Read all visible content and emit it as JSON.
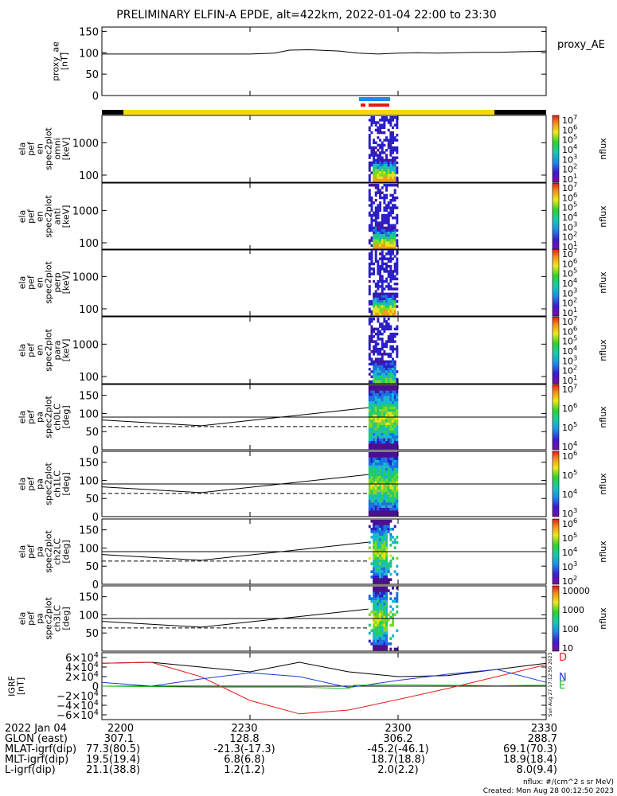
{
  "title": "PRELIMINARY ELFIN-A EPDE, alt=422km, 2022-01-04 22:00 to 23:30",
  "colors": {
    "yellow_bar": "#f7d800",
    "black_bar": "#000000",
    "blue_mark": "#1e8ce6",
    "red_mark": "#e21b1b",
    "grf_d": "#e21b1b",
    "grf_n": "#1a3cd0",
    "grf_e": "#1fbf1f",
    "grf_total": "#000000"
  },
  "panels": {
    "ae": {
      "ylabel": [
        "proxy_ae",
        "[nT]"
      ],
      "legend": "proxy_AE",
      "yticks": [
        "150",
        "100",
        "50",
        "0"
      ]
    },
    "spec": [
      {
        "ylabel": [
          "ela",
          "pef",
          "en",
          "spec2plot",
          "omni",
          "[keV]"
        ],
        "yticks": [
          "1000",
          "100"
        ],
        "cbar_ticks": [
          "10^7",
          "10^6",
          "10^5",
          "10^4",
          "10^3",
          "10^2",
          "10^1"
        ],
        "cbar_label": "nflux"
      },
      {
        "ylabel": [
          "ela",
          "pef",
          "en",
          "spec2plot",
          "anti",
          "[keV]"
        ],
        "yticks": [
          "1000",
          "100"
        ],
        "cbar_ticks": [
          "10^7",
          "10^6",
          "10^5",
          "10^4",
          "10^3",
          "10^2",
          "10^1"
        ],
        "cbar_label": "nflux"
      },
      {
        "ylabel": [
          "ela",
          "pef",
          "en",
          "spec2plot",
          "perp",
          "[keV]"
        ],
        "yticks": [
          "1000",
          "100"
        ],
        "cbar_ticks": [
          "10^7",
          "10^6",
          "10^5",
          "10^4",
          "10^3",
          "10^2",
          "10^1"
        ],
        "cbar_label": "nflux"
      },
      {
        "ylabel": [
          "ela",
          "pef",
          "en",
          "spec2plot",
          "para",
          "[keV]"
        ],
        "yticks": [
          "1000",
          "100"
        ],
        "cbar_ticks": [
          "10^7",
          "10^6",
          "10^5",
          "10^4",
          "10^3",
          "10^2",
          "10^1"
        ],
        "cbar_label": "nflux"
      }
    ],
    "pa": [
      {
        "ylabel": [
          "ela",
          "pef",
          "pa",
          "spec2plot",
          "ch0LC",
          "[deg]"
        ],
        "yticks": [
          "150",
          "100",
          "50",
          "0"
        ],
        "cbar_ticks": [
          "10^7",
          "10^6",
          "10^5",
          "10^4"
        ],
        "cbar_label": "nflux"
      },
      {
        "ylabel": [
          "ela",
          "pef",
          "pa",
          "spec2plot",
          "ch1LC",
          "[deg]"
        ],
        "yticks": [
          "150",
          "100",
          "50",
          "0"
        ],
        "cbar_ticks": [
          "10^6",
          "10^5",
          "10^4",
          "10^3"
        ],
        "cbar_label": "nflux"
      },
      {
        "ylabel": [
          "ela",
          "pef",
          "pa",
          "spec2plot",
          "ch2LC",
          "[deg]"
        ],
        "yticks": [
          "150",
          "100",
          "50",
          "0"
        ],
        "cbar_ticks": [
          "10^6",
          "10^5",
          "10^4",
          "10^3",
          "10^2"
        ],
        "cbar_label": "nflux"
      },
      {
        "ylabel": [
          "ela",
          "pef",
          "pa",
          "spec2plot",
          "ch3LC",
          "[deg]"
        ],
        "yticks": [
          "150",
          "100",
          "50"
        ],
        "cbar_ticks": [
          "10000",
          "1000",
          "100",
          "10"
        ],
        "cbar_label": "nflux"
      }
    ],
    "grf": {
      "ylabel": [
        "IGRF",
        "[nT]"
      ],
      "yticks": [
        "6×10^4",
        "4×10^4",
        "2×10^4",
        "0",
        "−2×10^4",
        "−4×10^4",
        "−6×10^4"
      ],
      "labels": [
        "D",
        "N",
        "E"
      ]
    }
  },
  "chart_data": [
    {
      "type": "line",
      "title": "proxy_AE",
      "xlabel": "",
      "ylabel": "proxy_ae [nT]",
      "ylim": [
        0,
        160
      ],
      "series": [
        {
          "name": "proxy_AE",
          "x_min": [
            0,
            10,
            20,
            30,
            35,
            38,
            42,
            48,
            52,
            56,
            60,
            64,
            68,
            72,
            76,
            80,
            84,
            88,
            90
          ],
          "values": [
            97,
            97,
            97,
            97,
            99,
            106,
            107,
            104,
            99,
            97,
            99,
            100,
            99,
            100,
            101,
            101,
            102,
            103,
            104
          ]
        }
      ]
    },
    {
      "type": "heatmap",
      "title": "ela pef en spec2plot omni",
      "ylabel": "[keV]",
      "ylim": [
        60,
        7000
      ],
      "yscale": "log",
      "x_active_min": [
        54,
        60
      ],
      "colorbar": "nflux",
      "zlim": [
        10,
        10000000
      ]
    },
    {
      "type": "heatmap",
      "title": "ela pef en spec2plot anti",
      "ylabel": "[keV]",
      "ylim": [
        60,
        7000
      ],
      "yscale": "log",
      "x_active_min": [
        54,
        60
      ],
      "colorbar": "nflux",
      "zlim": [
        10,
        10000000
      ]
    },
    {
      "type": "heatmap",
      "title": "ela pef en spec2plot perp",
      "ylabel": "[keV]",
      "ylim": [
        60,
        7000
      ],
      "yscale": "log",
      "x_active_min": [
        54,
        60
      ],
      "colorbar": "nflux",
      "zlim": [
        10,
        10000000
      ]
    },
    {
      "type": "heatmap",
      "title": "ela pef en spec2plot para",
      "ylabel": "[keV]",
      "ylim": [
        60,
        7000
      ],
      "yscale": "log",
      "x_active_min": [
        54,
        60
      ],
      "colorbar": "nflux",
      "zlim": [
        10,
        10000000
      ]
    },
    {
      "type": "heatmap",
      "title": "ela pef pa spec2plot ch0LC",
      "ylabel": "[deg]",
      "ylim": [
        0,
        180
      ],
      "hline": 90,
      "lc_solid": {
        "x_min": [
          0,
          20,
          54
        ],
        "values": [
          82,
          66,
          116
        ]
      },
      "lc_dashed": {
        "x_min": [
          0,
          20,
          54
        ],
        "values": [
          64,
          64,
          64
        ]
      }
    },
    {
      "type": "heatmap",
      "title": "ela pef pa spec2plot ch1LC",
      "ylabel": "[deg]",
      "ylim": [
        0,
        180
      ],
      "hline": 90,
      "lc_solid": {
        "x_min": [
          0,
          20,
          54
        ],
        "values": [
          82,
          66,
          116
        ]
      },
      "lc_dashed": {
        "x_min": [
          0,
          20,
          54
        ],
        "values": [
          64,
          64,
          64
        ]
      }
    },
    {
      "type": "heatmap",
      "title": "ela pef pa spec2plot ch2LC",
      "ylabel": "[deg]",
      "ylim": [
        0,
        180
      ],
      "hline": 90,
      "lc_solid": {
        "x_min": [
          0,
          20,
          54
        ],
        "values": [
          82,
          66,
          116
        ]
      },
      "lc_dashed": {
        "x_min": [
          0,
          20,
          54
        ],
        "values": [
          64,
          64,
          64
        ]
      }
    },
    {
      "type": "heatmap",
      "title": "ela pef pa spec2plot ch3LC",
      "ylabel": "[deg]",
      "ylim": [
        0,
        180
      ],
      "hline": 90,
      "lc_solid": {
        "x_min": [
          0,
          20,
          54
        ],
        "values": [
          82,
          66,
          116
        ]
      },
      "lc_dashed": {
        "x_min": [
          0,
          20,
          54
        ],
        "values": [
          64,
          64,
          64
        ]
      }
    },
    {
      "type": "line",
      "title": "IGRF",
      "ylabel": "IGRF [nT]",
      "ylim": [
        -70000,
        70000
      ],
      "series": [
        {
          "name": "total",
          "x_min": [
            0,
            10,
            20,
            30,
            40,
            50,
            60,
            70,
            80,
            90
          ],
          "values": [
            48000,
            50000,
            40000,
            30000,
            50000,
            30000,
            20000,
            22000,
            35000,
            48000
          ]
        },
        {
          "name": "D",
          "x_min": [
            0,
            10,
            20,
            30,
            40,
            50,
            60,
            70,
            80,
            90
          ],
          "values": [
            48000,
            50000,
            20000,
            -30000,
            -58000,
            -50000,
            -28000,
            -5000,
            20000,
            45000
          ]
        },
        {
          "name": "N",
          "x_min": [
            0,
            10,
            20,
            30,
            40,
            50,
            60,
            70,
            80,
            90
          ],
          "values": [
            8000,
            0,
            15000,
            28000,
            20000,
            -3000,
            12000,
            25000,
            35000,
            8000
          ]
        },
        {
          "name": "E",
          "x_min": [
            0,
            10,
            20,
            30,
            40,
            50,
            51,
            60,
            70,
            80,
            90
          ],
          "values": [
            0,
            -1000,
            -2000,
            -2000,
            -2000,
            -5000,
            2000,
            3000,
            2000,
            1000,
            2000
          ]
        }
      ]
    }
  ],
  "x_ticks": [
    "2200",
    "2230",
    "2300",
    "2330"
  ],
  "footer": {
    "rows": [
      {
        "label": "2022 Jan 04",
        "v1": "2200",
        "v2": "2230",
        "v3": "2300",
        "v4": "2330"
      },
      {
        "label": "GLON (east)",
        "v1": "307.1",
        "v2": "128.8",
        "v3": "306.2",
        "v4": "288.7"
      },
      {
        "label": "MLAT-igrf(dip)",
        "v1": "77.3(80.5)",
        "v2": "-21.3(-17.3)",
        "v3": "-45.2(-46.1)",
        "v4": "69.1(70.3)"
      },
      {
        "label": "MLT-igrf(dip)",
        "v1": "19.5(19.4)",
        "v2": "6.8(6.8)",
        "v3": "18.7(18.8)",
        "v4": "18.9(18.4)"
      },
      {
        "label": "L-igrf(dip)",
        "v1": "21.1(38.8)",
        "v2": "1.2(1.2)",
        "v3": "2.0(2.2)",
        "v4": "8.0(9.4)"
      }
    ],
    "units_note": "nflux: #/(cm^2 s sr MeV)",
    "created": "Created: Mon Aug 28 00:12:50 2023",
    "side_stamp": "Sun Aug 27 17:12:50 2023"
  }
}
